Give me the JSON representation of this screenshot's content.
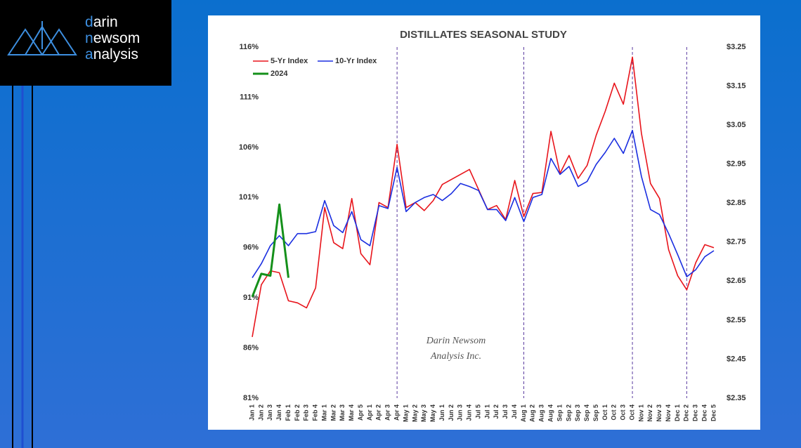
{
  "logo": {
    "words": [
      "darin",
      "newsom",
      "analysis"
    ]
  },
  "watermark": [
    "Darin Newsom",
    "Analysis Inc."
  ],
  "chart_data": {
    "type": "line",
    "title": "DISTILLATES SEASONAL STUDY",
    "categories": [
      "Jan 1",
      "Jan 2",
      "Jan 3",
      "Jan 4",
      "Feb 1",
      "Feb 2",
      "Feb 3",
      "Feb 4",
      "Mar 1",
      "Mar 2",
      "Mar 3",
      "Mar 4",
      "Apr 5",
      "Apr 1",
      "Apr 2",
      "Apr 3",
      "Apr 4",
      "May 1",
      "May 2",
      "May 3",
      "May 4",
      "Jun 1",
      "Jun 2",
      "Jun 3",
      "Jun 4",
      "Jul 5",
      "Jul 1",
      "Jul 2",
      "Jul 3",
      "Jul 4",
      "Aug 1",
      "Aug 2",
      "Aug 3",
      "Aug 4",
      "Sep 1",
      "Sep 2",
      "Sep 3",
      "Sep 4",
      "Sep 5",
      "Oct 1",
      "Oct 2",
      "Oct 3",
      "Oct 4",
      "Nov 1",
      "Nov 2",
      "Nov 3",
      "Nov 4",
      "Dec 1",
      "Dec 2",
      "Dec 3",
      "Dec 4",
      "Dec 5"
    ],
    "series": [
      {
        "name": "5-Yr Index",
        "color": "#e8141b",
        "values": [
          87.1,
          92.3,
          93.7,
          93.5,
          90.7,
          90.5,
          90.0,
          92.0,
          100.0,
          96.5,
          95.9,
          100.9,
          95.4,
          94.3,
          100.5,
          100.0,
          106.3,
          100.0,
          100.5,
          99.7,
          100.7,
          102.3,
          102.8,
          103.3,
          103.8,
          101.8,
          99.8,
          100.2,
          98.8,
          102.7,
          99.1,
          101.4,
          101.5,
          107.6,
          103.4,
          105.2,
          102.9,
          104.2,
          107.2,
          109.6,
          112.4,
          110.3,
          115.0,
          107.4,
          102.4,
          100.9,
          95.8,
          93.2,
          91.8,
          94.5,
          96.3,
          96.0
        ]
      },
      {
        "name": "10-Yr Index",
        "color": "#1a2ee0",
        "values": [
          93.0,
          94.4,
          96.2,
          97.2,
          96.2,
          97.4,
          97.4,
          97.6,
          100.7,
          98.2,
          97.5,
          99.6,
          96.8,
          96.2,
          100.2,
          99.9,
          104.0,
          99.6,
          100.5,
          101.0,
          101.3,
          100.7,
          101.4,
          102.4,
          102.1,
          101.7,
          99.8,
          99.8,
          98.7,
          101.0,
          98.6,
          101.0,
          101.3,
          104.9,
          103.3,
          104.1,
          102.1,
          102.6,
          104.3,
          105.5,
          106.9,
          105.4,
          107.7,
          103.1,
          99.8,
          99.3,
          97.4,
          95.3,
          93.1,
          93.8,
          95.1,
          95.7
        ]
      },
      {
        "name": "2024",
        "color": "#14901a",
        "values": [
          91.1,
          93.4,
          93.2,
          100.3,
          93.0,
          null,
          null,
          null,
          null,
          null,
          null,
          null,
          null,
          null,
          null,
          null,
          null,
          null,
          null,
          null,
          null,
          null,
          null,
          null,
          null,
          null,
          null,
          null,
          null,
          null,
          null,
          null,
          null,
          null,
          null,
          null,
          null,
          null,
          null,
          null,
          null,
          null,
          null,
          null,
          null,
          null,
          null,
          null,
          null,
          null,
          null,
          null
        ]
      }
    ],
    "vlines": [
      "Apr 4",
      "Aug 1",
      "Oct 4",
      "Dec 2"
    ],
    "ylim": [
      81,
      116
    ],
    "yticks": [
      {
        "value": 81,
        "label": "81%"
      },
      {
        "value": 86,
        "label": "86%"
      },
      {
        "value": 91,
        "label": "91%"
      },
      {
        "value": 96,
        "label": "96%"
      },
      {
        "value": 101,
        "label": "101%"
      },
      {
        "value": 106,
        "label": "106%"
      },
      {
        "value": 111,
        "label": "111%"
      },
      {
        "value": 116,
        "label": "116%"
      }
    ],
    "y2lim": [
      2.35,
      3.25
    ],
    "y2ticks": [
      {
        "value": 2.35,
        "label": "$2.35"
      },
      {
        "value": 2.45,
        "label": "$2.45"
      },
      {
        "value": 2.55,
        "label": "$2.55"
      },
      {
        "value": 2.65,
        "label": "$2.65"
      },
      {
        "value": 2.75,
        "label": "$2.75"
      },
      {
        "value": 2.85,
        "label": "$2.85"
      },
      {
        "value": 2.95,
        "label": "$2.95"
      },
      {
        "value": 3.05,
        "label": "$3.05"
      },
      {
        "value": 3.15,
        "label": "$3.15"
      },
      {
        "value": 3.25,
        "label": "$3.25"
      }
    ],
    "legend": "top-left"
  }
}
